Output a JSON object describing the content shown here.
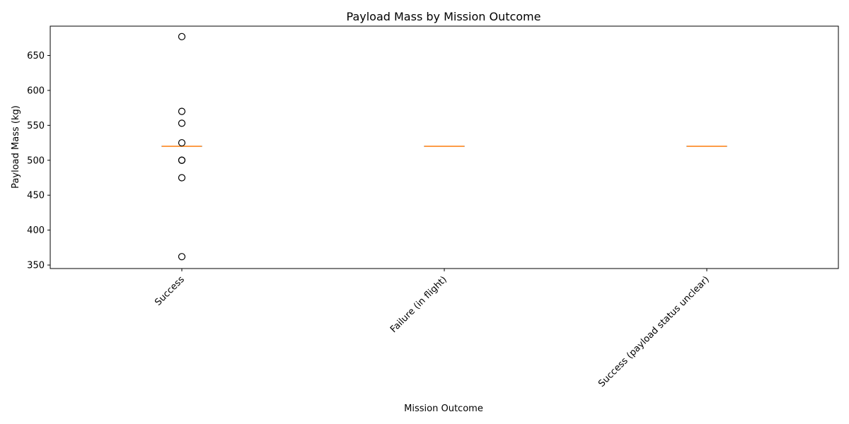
{
  "chart_data": {
    "type": "box",
    "title": "Payload Mass by Mission Outcome",
    "xlabel": "Mission Outcome",
    "ylabel": "Payload Mass (kg)",
    "ylim": [
      345,
      692
    ],
    "yticks": [
      350,
      400,
      450,
      500,
      550,
      600,
      650
    ],
    "grid": false,
    "categories": [
      "Success",
      "Failure  (in flight)",
      "Success  (payload status unclear)"
    ],
    "boxes": [
      {
        "q1": 520,
        "median": 520,
        "q3": 520,
        "whisker_low": 520,
        "whisker_high": 520,
        "outliers": [
          677,
          570,
          553,
          525,
          500,
          500,
          475,
          362
        ]
      },
      {
        "q1": 520,
        "median": 520,
        "q3": 520,
        "whisker_low": 520,
        "whisker_high": 520,
        "outliers": []
      },
      {
        "q1": 520,
        "median": 520,
        "q3": 520,
        "whisker_low": 520,
        "whisker_high": 520,
        "outliers": []
      }
    ],
    "colors": {
      "box": "#000000",
      "median": "#ff7f0e",
      "outlier": "#000000"
    }
  }
}
